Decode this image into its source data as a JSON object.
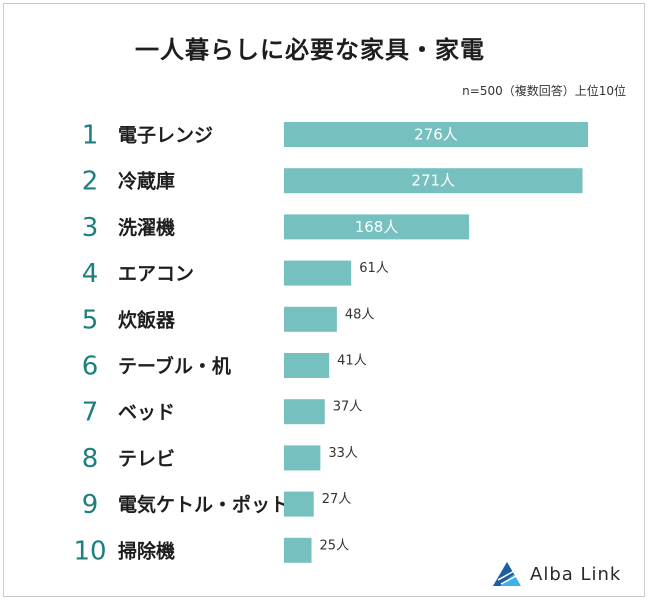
{
  "title": "一人暮らしに必要な家具・家電",
  "note": "n=500（複数回答）上位10位",
  "brand": "Alba Link",
  "colors": {
    "bar": "#76c1bf",
    "rank": "#1e7f7f",
    "logo_dark": "#1f5fa0",
    "logo_light": "#3fb0e8"
  },
  "chart_data": {
    "type": "bar",
    "orientation": "horizontal",
    "ranks": [
      "1",
      "2",
      "3",
      "4",
      "5",
      "6",
      "7",
      "8",
      "9",
      "10"
    ],
    "categories": [
      "電子レンジ",
      "冷蔵庫",
      "洗濯機",
      "エアコン",
      "炊飯器",
      "テーブル・机",
      "ベッド",
      "テレビ",
      "電気ケトル・ポット",
      "掃除機"
    ],
    "values": [
      276,
      271,
      168,
      61,
      48,
      41,
      37,
      33,
      27,
      25
    ],
    "value_labels": [
      "276人",
      "271人",
      "168人",
      "61人",
      "48人",
      "41人",
      "37人",
      "33人",
      "27人",
      "25人"
    ],
    "unit": "人",
    "xlim": [
      0,
      276
    ],
    "grid": false,
    "legend": "none"
  }
}
